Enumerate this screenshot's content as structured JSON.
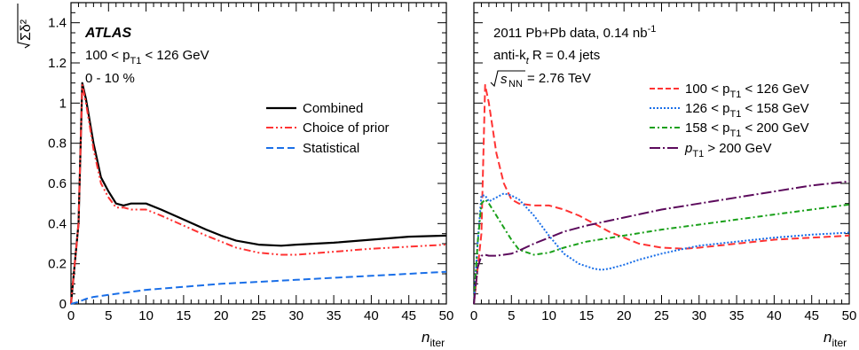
{
  "chart_data": [
    {
      "type": "line",
      "panel": "left",
      "xlabel": "n_iter",
      "xlabel_main": "n",
      "xlabel_sub": "iter",
      "ylabel": "√Σδ²",
      "xlim": [
        0,
        50
      ],
      "ylim": [
        0,
        1.5
      ],
      "xticks": [
        "0",
        "5",
        "10",
        "15",
        "20",
        "25",
        "30",
        "35",
        "40",
        "45",
        "50"
      ],
      "yticks": [
        "0",
        "0.2",
        "0.4",
        "0.6",
        "0.8",
        "1",
        "1.2",
        "1.4"
      ],
      "annotations": {
        "experiment": "ATLAS",
        "cut_left": "100 < p",
        "cut_sub": "T1",
        "cut_right": " < 126 GeV",
        "centrality": "0 - 10 %"
      },
      "legend_position": "top-right",
      "series": [
        {
          "name": "Combined",
          "color": "#000000",
          "style": "solid",
          "x": [
            0,
            1,
            1.5,
            2,
            3,
            4,
            5,
            6,
            7,
            8,
            9,
            10,
            12,
            15,
            18,
            20,
            22,
            25,
            28,
            30,
            35,
            40,
            45,
            50
          ],
          "y": [
            0,
            0.4,
            1.1,
            1.02,
            0.8,
            0.63,
            0.56,
            0.5,
            0.49,
            0.5,
            0.5,
            0.5,
            0.47,
            0.42,
            0.37,
            0.34,
            0.315,
            0.295,
            0.29,
            0.295,
            0.305,
            0.32,
            0.335,
            0.34
          ]
        },
        {
          "name": "Choice of prior",
          "color": "#ff3333",
          "style": "dash-dot-dot",
          "x": [
            0,
            1,
            1.5,
            2,
            3,
            4,
            5,
            6,
            7,
            8,
            9,
            10,
            12,
            15,
            18,
            20,
            22,
            25,
            28,
            30,
            35,
            40,
            45,
            50
          ],
          "y": [
            0,
            0.4,
            1.09,
            1.0,
            0.77,
            0.6,
            0.53,
            0.48,
            0.48,
            0.47,
            0.47,
            0.47,
            0.44,
            0.39,
            0.34,
            0.31,
            0.28,
            0.255,
            0.245,
            0.245,
            0.26,
            0.275,
            0.285,
            0.295
          ]
        },
        {
          "name": "Statistical",
          "color": "#1a6fe8",
          "style": "dashed",
          "x": [
            0,
            1,
            2,
            3,
            5,
            8,
            10,
            15,
            20,
            25,
            30,
            35,
            40,
            45,
            50
          ],
          "y": [
            0,
            0.01,
            0.025,
            0.035,
            0.045,
            0.06,
            0.07,
            0.085,
            0.1,
            0.11,
            0.12,
            0.13,
            0.14,
            0.15,
            0.16
          ]
        }
      ]
    },
    {
      "type": "line",
      "panel": "right",
      "xlabel": "n_iter",
      "xlabel_main": "n",
      "xlabel_sub": "iter",
      "xlim": [
        0,
        50
      ],
      "ylim": [
        0,
        1.5
      ],
      "xticks": [
        "0",
        "5",
        "10",
        "15",
        "20",
        "25",
        "30",
        "35",
        "40",
        "45",
        "50"
      ],
      "annotations": {
        "dataset": "2011 Pb+Pb data, 0.14 nb",
        "dataset_sup": "-1",
        "algorithm_pre": "anti-k",
        "algorithm_sub": "t",
        "algorithm_post": " R = 0.4 jets",
        "energy_sub": "NN",
        "energy_post": " = 2.76 TeV"
      },
      "legend_position": "top-right",
      "series": [
        {
          "name": "100 < p_T1 < 126 GeV",
          "label_pre": "100 < p",
          "label_sub": "T1",
          "label_post": " < 126 GeV",
          "color": "#ff3333",
          "style": "dashed",
          "x": [
            0,
            1,
            1.5,
            2,
            3,
            4,
            5,
            6,
            8,
            10,
            12,
            14,
            16,
            18,
            20,
            22,
            25,
            28,
            30,
            35,
            40,
            45,
            50
          ],
          "y": [
            0,
            0.35,
            1.09,
            1.0,
            0.75,
            0.6,
            0.52,
            0.5,
            0.49,
            0.49,
            0.47,
            0.44,
            0.4,
            0.36,
            0.33,
            0.3,
            0.28,
            0.275,
            0.28,
            0.3,
            0.32,
            0.33,
            0.34
          ]
        },
        {
          "name": "126 < p_T1 < 158 GeV",
          "label_pre": "126 < p",
          "label_sub": "T1",
          "label_post": " < 158 GeV",
          "color": "#1a6fe8",
          "style": "dotted",
          "x": [
            0,
            0.5,
            1,
            1.5,
            2,
            3,
            4,
            5,
            6,
            8,
            10,
            12,
            14,
            16,
            17,
            18,
            20,
            22,
            25,
            28,
            30,
            35,
            40,
            45,
            50
          ],
          "y": [
            0,
            0.3,
            0.54,
            0.54,
            0.51,
            0.53,
            0.55,
            0.54,
            0.52,
            0.44,
            0.34,
            0.25,
            0.2,
            0.175,
            0.17,
            0.175,
            0.195,
            0.22,
            0.25,
            0.275,
            0.29,
            0.31,
            0.33,
            0.345,
            0.355
          ]
        },
        {
          "name": "158 < p_T1 < 200 GeV",
          "label_pre": "158 < p",
          "label_sub": "T1",
          "label_post": " < 200 GeV",
          "color": "#1aa01a",
          "style": "dash-dot",
          "x": [
            0,
            0.5,
            1,
            1.5,
            2,
            3,
            4,
            5,
            6,
            8,
            10,
            12,
            15,
            20,
            25,
            30,
            35,
            40,
            45,
            50
          ],
          "y": [
            0,
            0.3,
            0.5,
            0.52,
            0.5,
            0.44,
            0.38,
            0.32,
            0.27,
            0.245,
            0.255,
            0.28,
            0.31,
            0.34,
            0.37,
            0.395,
            0.42,
            0.445,
            0.47,
            0.495
          ]
        },
        {
          "name": "p_T1 > 200 GeV",
          "label_pre": "p",
          "label_sub": "T1",
          "label_post": " > 200 GeV",
          "color": "#5c0a5c",
          "style": "dash-dot-long",
          "x": [
            0,
            0.5,
            1,
            1.5,
            2,
            3,
            4,
            5,
            6,
            8,
            10,
            12,
            15,
            20,
            25,
            30,
            35,
            40,
            45,
            50
          ],
          "y": [
            0,
            0.18,
            0.24,
            0.245,
            0.24,
            0.24,
            0.245,
            0.25,
            0.265,
            0.3,
            0.33,
            0.36,
            0.39,
            0.43,
            0.47,
            0.5,
            0.53,
            0.56,
            0.59,
            0.61
          ]
        }
      ]
    }
  ]
}
